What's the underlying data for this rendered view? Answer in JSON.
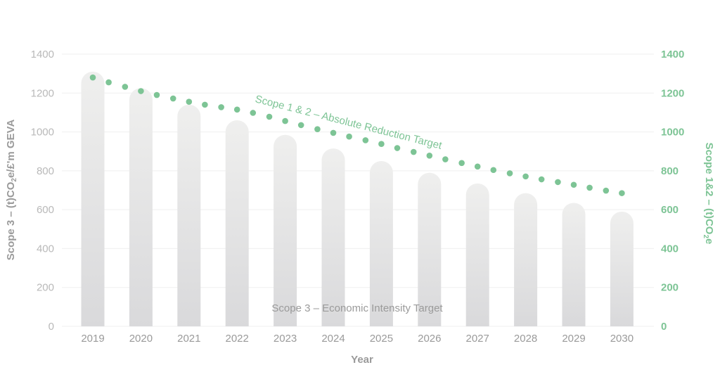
{
  "chart_data": {
    "type": "bar",
    "categories": [
      "2019",
      "2020",
      "2021",
      "2022",
      "2023",
      "2024",
      "2025",
      "2026",
      "2027",
      "2028",
      "2029",
      "2030"
    ],
    "series": [
      {
        "name": "Scope 3 – Economic Intensity Target",
        "type": "bar",
        "axis": "left",
        "values": [
          1310,
          1225,
          1140,
          1060,
          985,
          915,
          850,
          790,
          735,
          685,
          635,
          590
        ]
      },
      {
        "name": "Scope 1 & 2 – Absolute Reduction Target",
        "type": "dotted-line",
        "axis": "right",
        "x": [
          2019,
          2019.33,
          2019.67,
          2020,
          2020.33,
          2020.67,
          2021,
          2021.33,
          2021.67,
          2022,
          2022.33,
          2022.67,
          2023,
          2023.33,
          2023.67,
          2024,
          2024.33,
          2024.67,
          2025,
          2025.33,
          2025.67,
          2026,
          2026.33,
          2026.67,
          2027,
          2027.33,
          2027.67,
          2028,
          2028.33,
          2028.67,
          2029,
          2029.33,
          2029.67,
          2030
        ],
        "values": [
          1280,
          1255,
          1232,
          1210,
          1190,
          1172,
          1155,
          1140,
          1127,
          1115,
          1098,
          1078,
          1056,
          1035,
          1014,
          995,
          976,
          957,
          938,
          917,
          897,
          878,
          859,
          840,
          822,
          804,
          787,
          771,
          756,
          742,
          728,
          713,
          698,
          685
        ]
      }
    ],
    "y_left": {
      "label": "Scope 3 – (t)CO",
      "label_sub": "2",
      "label_suffix": "e/£'m GEVA",
      "ylim": [
        0,
        1400
      ],
      "ticks": [
        "0",
        "200",
        "400",
        "600",
        "800",
        "1000",
        "1200",
        "1400"
      ]
    },
    "y_right": {
      "label": "Scope 1&2 – (t)CO",
      "label_sub": "2",
      "label_suffix": "e",
      "ylim": [
        0,
        1400
      ],
      "ticks": [
        "0",
        "200",
        "400",
        "600",
        "800",
        "1000",
        "1200",
        "1400"
      ]
    },
    "xlabel": "Year",
    "grid": true,
    "annotations": {
      "scope12": "Scope 1 & 2 – Absolute Reduction Target",
      "scope3": "Scope 3 – Economic Intensity Target"
    },
    "colors": {
      "bar_top": "#efefee",
      "bar_bottom": "#d9d9db",
      "dots": "#7dc495",
      "grid": "#efefef",
      "left_text": "#b9b9b9",
      "right_text": "#7dc495",
      "x_text": "#9a9a9a"
    }
  }
}
